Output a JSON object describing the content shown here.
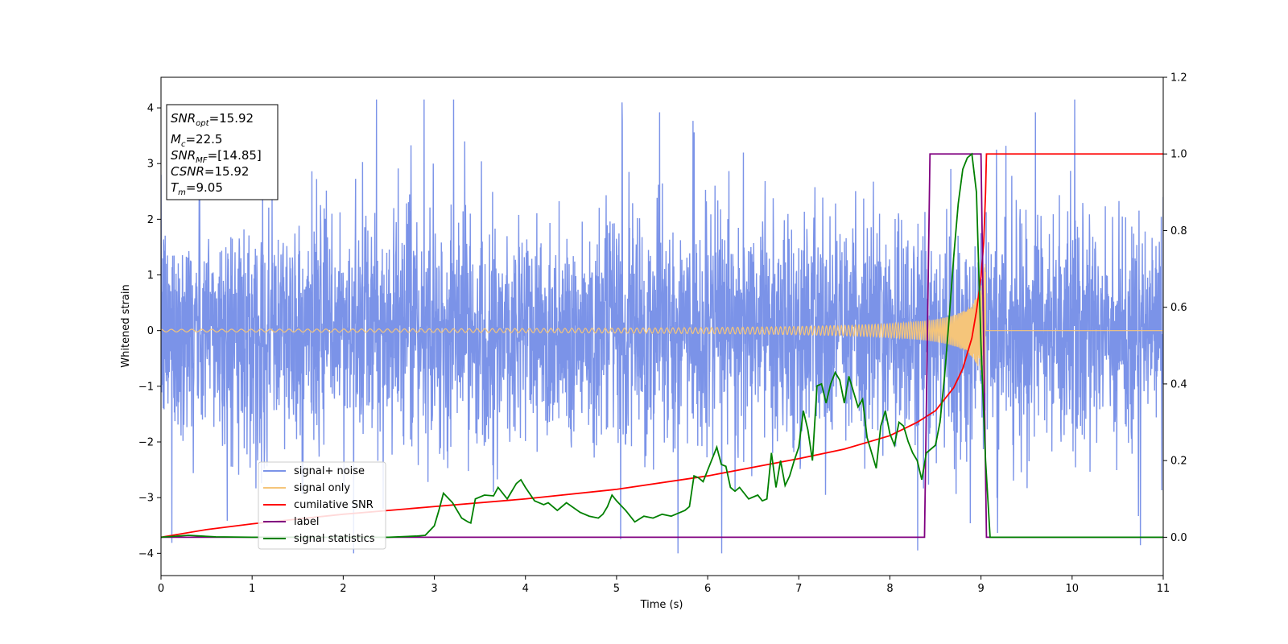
{
  "chart_data": {
    "type": "line",
    "xlabel": "Time (s)",
    "ylabel": "Whitened strain",
    "xlim": [
      0,
      11
    ],
    "ylim": [
      -4.4,
      4.55
    ],
    "y2lim": [
      -0.1,
      1.2
    ],
    "grid": false,
    "legend_position": "lower-left",
    "x_ticks": [
      "0",
      "1",
      "2",
      "3",
      "4",
      "5",
      "6",
      "7",
      "8",
      "9",
      "10",
      "11"
    ],
    "y_ticks": [
      "−4",
      "−3",
      "−2",
      "−1",
      "0",
      "1",
      "2",
      "3",
      "4"
    ],
    "y2_ticks": [
      "0.0",
      "0.2",
      "0.4",
      "0.6",
      "0.8",
      "1.0",
      "1.2"
    ],
    "info_box": {
      "snr_opt": {
        "base": "SNR",
        "sub": "opt",
        "value": "=15.92"
      },
      "mc": {
        "base": "M",
        "sub": "c",
        "value": "=22.5"
      },
      "snr_mf": {
        "base": "SNR",
        "sub": "MF",
        "value": "=[14.85]"
      },
      "csnr": {
        "base": "CSNR",
        "value": "=15.92"
      },
      "tm": {
        "base": "T",
        "sub": "m",
        "value": "=9.05"
      }
    },
    "series": [
      {
        "name": "signal+ noise",
        "color": "#7b93e8",
        "axis": "left",
        "description_kind": "noisy",
        "noise_sigma": 1.0,
        "merger_time": 9.05
      },
      {
        "name": "signal only",
        "color": "#f5c57a",
        "axis": "left",
        "description_kind": "chirp",
        "merger_time": 9.05,
        "peak_amplitude": 1.3
      },
      {
        "name": "cumilative SNR",
        "color": "#ff0000",
        "axis": "right",
        "x": [
          0,
          0.5,
          1,
          2,
          3,
          4,
          5,
          6,
          7,
          7.5,
          8,
          8.3,
          8.5,
          8.7,
          8.8,
          8.9,
          8.95,
          9.0,
          9.03,
          9.05,
          9.06,
          11
        ],
        "y": [
          0.0,
          0.02,
          0.035,
          0.06,
          0.08,
          0.1,
          0.125,
          0.16,
          0.205,
          0.23,
          0.265,
          0.3,
          0.33,
          0.39,
          0.44,
          0.52,
          0.59,
          0.68,
          0.77,
          0.9,
          1.0,
          1.0
        ]
      },
      {
        "name": "label",
        "color": "#800080",
        "axis": "right",
        "x": [
          0,
          8.38,
          8.44,
          9.0,
          9.06,
          11
        ],
        "y": [
          0,
          0,
          1,
          1,
          0,
          0
        ]
      },
      {
        "name": "signal statistics",
        "color": "#008000",
        "axis": "right",
        "x": [
          0,
          0.3,
          0.6,
          1,
          2,
          2.5,
          2.8,
          2.9,
          3.0,
          3.05,
          3.1,
          3.2,
          3.3,
          3.37,
          3.4,
          3.45,
          3.55,
          3.65,
          3.7,
          3.8,
          3.9,
          3.95,
          4.0,
          4.1,
          4.2,
          4.25,
          4.35,
          4.45,
          4.6,
          4.7,
          4.8,
          4.85,
          4.9,
          4.95,
          5.0,
          5.1,
          5.2,
          5.3,
          5.4,
          5.5,
          5.6,
          5.65,
          5.7,
          5.75,
          5.8,
          5.85,
          5.9,
          5.95,
          6.0,
          6.1,
          6.15,
          6.2,
          6.25,
          6.3,
          6.35,
          6.45,
          6.5,
          6.55,
          6.6,
          6.65,
          6.7,
          6.75,
          6.8,
          6.85,
          6.9,
          6.95,
          7.0,
          7.05,
          7.1,
          7.15,
          7.2,
          7.25,
          7.3,
          7.35,
          7.4,
          7.45,
          7.5,
          7.55,
          7.6,
          7.65,
          7.7,
          7.75,
          7.8,
          7.85,
          7.9,
          7.95,
          8.0,
          8.05,
          8.1,
          8.15,
          8.2,
          8.25,
          8.3,
          8.35,
          8.4,
          8.5,
          8.55,
          8.6,
          8.65,
          8.7,
          8.75,
          8.8,
          8.85,
          8.9,
          8.95,
          9.0,
          9.05,
          9.1,
          9.15,
          11
        ],
        "y": [
          0.0,
          0.005,
          0.001,
          0.0,
          0.0,
          0.0,
          0.003,
          0.005,
          0.03,
          0.07,
          0.115,
          0.09,
          0.05,
          0.04,
          0.037,
          0.1,
          0.11,
          0.108,
          0.13,
          0.1,
          0.14,
          0.15,
          0.13,
          0.095,
          0.085,
          0.09,
          0.07,
          0.09,
          0.065,
          0.055,
          0.05,
          0.06,
          0.08,
          0.11,
          0.095,
          0.07,
          0.04,
          0.055,
          0.05,
          0.06,
          0.055,
          0.06,
          0.065,
          0.07,
          0.08,
          0.16,
          0.155,
          0.145,
          0.175,
          0.235,
          0.19,
          0.185,
          0.13,
          0.12,
          0.13,
          0.1,
          0.105,
          0.11,
          0.095,
          0.1,
          0.22,
          0.13,
          0.2,
          0.135,
          0.16,
          0.2,
          0.235,
          0.33,
          0.28,
          0.2,
          0.395,
          0.4,
          0.35,
          0.4,
          0.43,
          0.41,
          0.35,
          0.42,
          0.38,
          0.34,
          0.36,
          0.26,
          0.22,
          0.18,
          0.29,
          0.33,
          0.27,
          0.24,
          0.3,
          0.29,
          0.25,
          0.22,
          0.2,
          0.15,
          0.22,
          0.24,
          0.3,
          0.42,
          0.57,
          0.73,
          0.87,
          0.96,
          0.99,
          1.0,
          0.9,
          0.5,
          0.2,
          0.0,
          0.0,
          0.0
        ]
      }
    ]
  }
}
